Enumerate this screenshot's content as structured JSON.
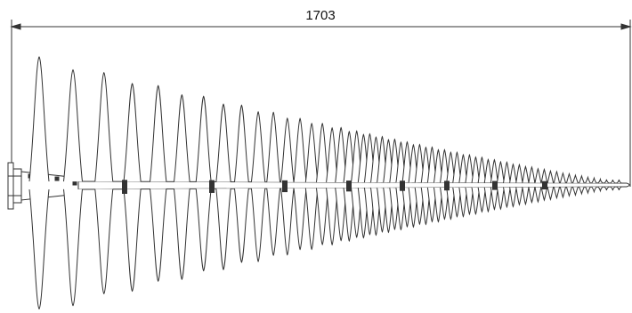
{
  "dimension": {
    "length_label": "1703"
  }
}
